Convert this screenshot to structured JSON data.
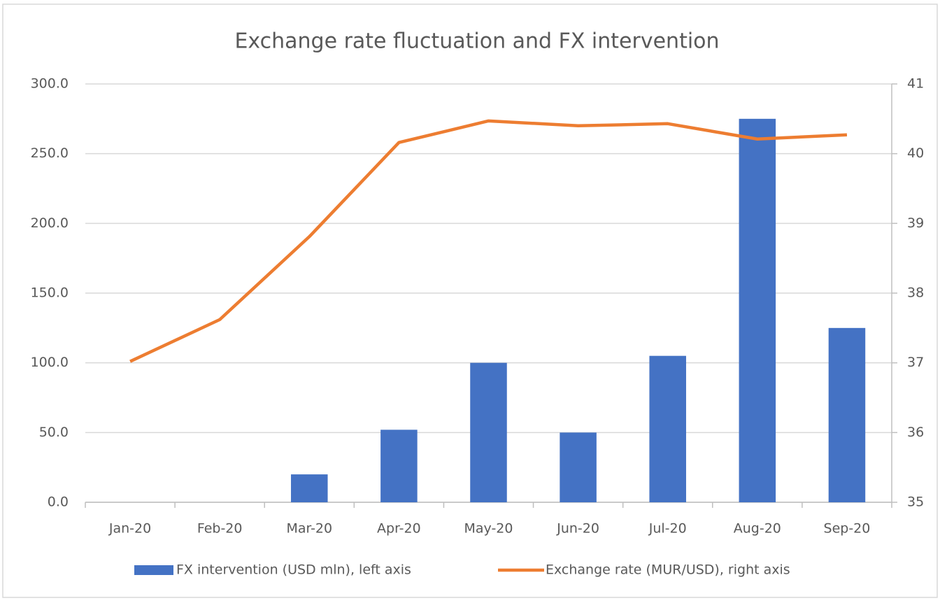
{
  "chart_data": {
    "type": "bar",
    "title": "Exchange rate fluctuation and FX intervention",
    "categories": [
      "Jan-20",
      "Feb-20",
      "Mar-20",
      "Apr-20",
      "May-20",
      "Jun-20",
      "Jul-20",
      "Aug-20",
      "Sep-20"
    ],
    "series": [
      {
        "name": "FX intervention (USD mln), left axis",
        "type": "bar",
        "color": "#4472c4",
        "values": [
          0,
          0,
          20,
          52,
          100,
          50,
          105,
          275,
          125
        ]
      },
      {
        "name": "Exchange rate (MUR/USD), right axis",
        "type": "line",
        "axis": "y2",
        "color": "#ed7d31",
        "values": [
          37.02,
          37.62,
          38.81,
          40.16,
          40.47,
          40.4,
          40.43,
          40.21,
          40.27
        ]
      }
    ],
    "ylim": [
      0,
      300
    ],
    "yticks": [
      {
        "value": 0,
        "label": "0.0"
      },
      {
        "value": 50,
        "label": "50.0"
      },
      {
        "value": 100,
        "label": "100.0"
      },
      {
        "value": 150,
        "label": "150.0"
      },
      {
        "value": 200,
        "label": "200.0"
      },
      {
        "value": 250,
        "label": "250.0"
      },
      {
        "value": 300,
        "label": "300.0"
      }
    ],
    "y2lim": [
      35,
      41
    ],
    "y2ticks": [
      35,
      36,
      37,
      38,
      39,
      40,
      41
    ],
    "grid": true,
    "legend": "bottom"
  }
}
